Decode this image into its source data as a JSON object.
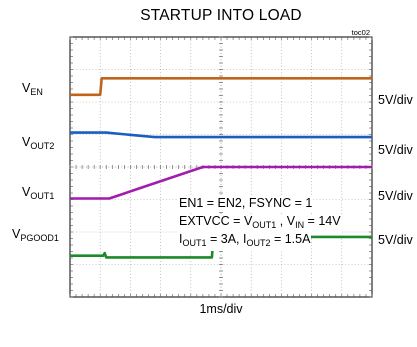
{
  "chart_data": {
    "type": "line",
    "title": "STARTUP INTO LOAD",
    "figure_id": "toc02",
    "xlabel": "1ms/div",
    "x_divisions": 10,
    "y_divisions": 8,
    "x_unit": "ms",
    "xlim": [
      0,
      10
    ],
    "series": [
      {
        "name": "V_EN",
        "label_main": "V",
        "label_sub": "EN",
        "scale": "5V/div",
        "color": "#c0641b",
        "points": [
          [
            0,
            2.22
          ],
          [
            1.0,
            2.22
          ],
          [
            1.05,
            2.73
          ],
          [
            10,
            2.73
          ]
        ]
      },
      {
        "name": "V_OUT2",
        "label_main": "V",
        "label_sub": "OUT2",
        "scale": "5V/div",
        "color": "#1a5fc0",
        "points": [
          [
            0,
            1.06
          ],
          [
            1.2,
            1.06
          ],
          [
            2.8,
            0.92
          ],
          [
            10,
            0.92
          ]
        ]
      },
      {
        "name": "V_OUT1",
        "label_main": "V",
        "label_sub": "OUT1",
        "scale": "5V/div",
        "color": "#a21cae",
        "points": [
          [
            0,
            -0.97
          ],
          [
            1.3,
            -0.97
          ],
          [
            4.4,
            0.0
          ],
          [
            10,
            0.0
          ]
        ]
      },
      {
        "name": "V_PGOOD1",
        "label_main": "V",
        "label_sub": "PGOOD1",
        "scale": "5V/div",
        "color": "#1c8a2a",
        "points": [
          [
            0,
            -2.73
          ],
          [
            1.1,
            -2.73
          ],
          [
            1.15,
            -2.65
          ],
          [
            1.2,
            -2.78
          ],
          [
            4.7,
            -2.78
          ],
          [
            4.75,
            -2.15
          ],
          [
            10,
            -2.15
          ]
        ]
      }
    ],
    "annotations": [
      {
        "parts": [
          [
            "EN1 = EN2, FSYNC = 1",
            ""
          ]
        ]
      },
      {
        "parts": [
          [
            "EXTVCC = V",
            ""
          ],
          [
            "OUT1",
            "sub"
          ],
          [
            " , V",
            ""
          ],
          [
            "IN",
            "sub"
          ],
          [
            " = 14V",
            ""
          ]
        ]
      },
      {
        "parts": [
          [
            "I",
            ""
          ],
          [
            "OUT1",
            "sub"
          ],
          [
            " = 3A, I",
            ""
          ],
          [
            "OUT2",
            "sub"
          ],
          [
            " = 1.5A",
            ""
          ]
        ]
      }
    ]
  }
}
